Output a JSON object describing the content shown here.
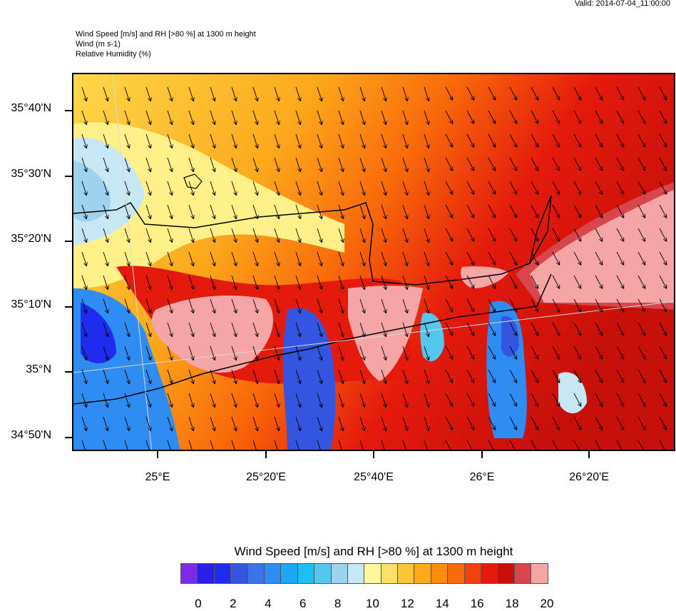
{
  "header": {
    "valid": "Valid: 2014-07-04_11:00:00",
    "line1": "Wind Speed [m/s] and RH [>80 %] at 1300 m height",
    "line2": "Wind   (m s-1)",
    "line3": "Relative Humidity    (%)"
  },
  "map": {
    "lat_labels": [
      "35°40'N",
      "35°30'N",
      "35°20'N",
      "35°10'N",
      "35°N",
      "34°50'N"
    ],
    "lon_labels": [
      "25°E",
      "25°20'E",
      "25°40'E",
      "26°E",
      "26°20'E"
    ],
    "rh_overlay_color": "#f5a5a5",
    "coastline_color": "#000000"
  },
  "colorbar": {
    "title": "Wind Speed [m/s] and RH [>80 %] at 1300 m height",
    "labels": [
      "0",
      "2",
      "4",
      "6",
      "8",
      "10",
      "12",
      "14",
      "16",
      "18",
      "20"
    ],
    "colors": [
      "#7b2ae6",
      "#2b1ee6",
      "#1f2cf0",
      "#3355e0",
      "#3a73ea",
      "#2f8cf2",
      "#1da6f5",
      "#1dbff2",
      "#56c7ec",
      "#9fd2ee",
      "#c8e7f5",
      "#fff7a0",
      "#ffe066",
      "#fdc63a",
      "#fcaa1c",
      "#fb8c0c",
      "#f96a0a",
      "#f3400c",
      "#e41a0c",
      "#c8100a",
      "#d9454d",
      "#f5a5a5"
    ]
  }
}
